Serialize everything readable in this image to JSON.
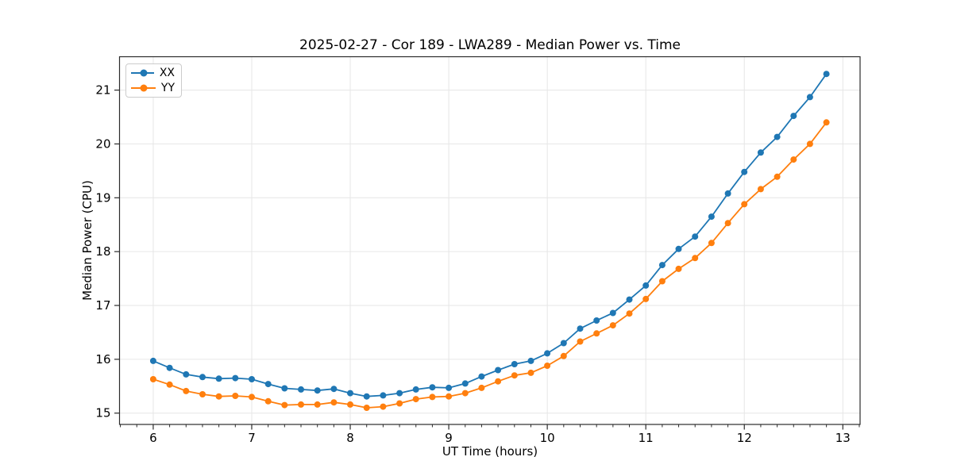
{
  "chart_data": {
    "type": "line",
    "title": "2025-02-27 - Cor 189 - LWA289 - Median Power vs. Time",
    "xlabel": "UT Time (hours)",
    "ylabel": "Median Power (CPU)",
    "xlim": [
      5.658,
      13.175
    ],
    "ylim": [
      14.79,
      21.62
    ],
    "xticks": [
      6,
      7,
      8,
      9,
      10,
      11,
      12,
      13
    ],
    "yticks": [
      15,
      16,
      17,
      18,
      19,
      20,
      21
    ],
    "minor_tick_step_x": 0.16667,
    "grid": true,
    "legend_position": "upper-left",
    "x": [
      6,
      6.1667,
      6.3333,
      6.5,
      6.6667,
      6.8333,
      7,
      7.1667,
      7.3333,
      7.5,
      7.6667,
      7.8333,
      8,
      8.1667,
      8.3333,
      8.5,
      8.6667,
      8.8333,
      9,
      9.1667,
      9.3333,
      9.5,
      9.6667,
      9.8333,
      10,
      10.1667,
      10.3333,
      10.5,
      10.6667,
      10.8333,
      11,
      11.1667,
      11.3333,
      11.5,
      11.6667,
      11.8333,
      12,
      12.1667,
      12.3333,
      12.5,
      12.6667,
      12.8333
    ],
    "series": [
      {
        "name": "XX",
        "color": "#1f77b4",
        "values": [
          15.97,
          15.84,
          15.72,
          15.67,
          15.64,
          15.65,
          15.63,
          15.54,
          15.46,
          15.44,
          15.42,
          15.45,
          15.37,
          15.31,
          15.33,
          15.37,
          15.44,
          15.48,
          15.47,
          15.55,
          15.68,
          15.8,
          15.91,
          15.97,
          16.11,
          16.3,
          16.57,
          16.72,
          16.86,
          17.11,
          17.37,
          17.75,
          18.05,
          18.28,
          18.65,
          19.08,
          19.48,
          19.84,
          20.13,
          20.52,
          20.87,
          21.3
        ]
      },
      {
        "name": "YY",
        "color": "#ff7f0e",
        "values": [
          15.63,
          15.53,
          15.41,
          15.35,
          15.31,
          15.32,
          15.3,
          15.22,
          15.15,
          15.16,
          15.16,
          15.2,
          15.16,
          15.1,
          15.12,
          15.18,
          15.26,
          15.3,
          15.31,
          15.37,
          15.47,
          15.59,
          15.7,
          15.75,
          15.88,
          16.06,
          16.33,
          16.48,
          16.63,
          16.85,
          17.12,
          17.45,
          17.68,
          17.88,
          18.16,
          18.53,
          18.88,
          19.16,
          19.39,
          19.71,
          20.0,
          20.4
        ]
      }
    ],
    "style": {
      "grid_color": "#e6e6e6",
      "spine_color": "#2b2b2b",
      "tick_color": "#2b2b2b",
      "background": "#ffffff",
      "marker_radius": 4,
      "line_width": 1.8
    }
  }
}
